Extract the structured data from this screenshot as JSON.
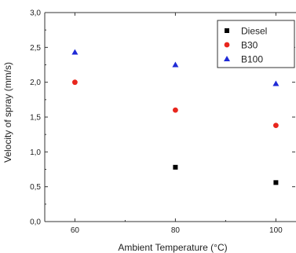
{
  "chart_data": {
    "type": "scatter",
    "xlabel": "Ambient Temperature (°C)",
    "ylabel": "Velocity of spray (mm/s)",
    "xlim": [
      54,
      104
    ],
    "ylim": [
      0,
      3.0
    ],
    "xticks": [
      60,
      80,
      100
    ],
    "yticks": [
      0,
      0.5,
      1.0,
      1.5,
      2.0,
      2.5,
      3.0
    ],
    "xtick_labels": [
      "60",
      "80",
      "100"
    ],
    "ytick_labels": [
      "0,0",
      "0,5",
      "1,0",
      "1,5",
      "2,0",
      "2,5",
      "3,0"
    ],
    "grid": false,
    "legend_position": "top-right",
    "series": [
      {
        "name": "Diesel",
        "color": "#000000",
        "marker": "square",
        "x": [
          80,
          100
        ],
        "y": [
          0.78,
          0.56
        ]
      },
      {
        "name": "B30",
        "color": "#e8261d",
        "marker": "circle",
        "x": [
          60,
          80,
          100
        ],
        "y": [
          2.0,
          1.6,
          1.38
        ]
      },
      {
        "name": "B100",
        "color": "#1f2ad6",
        "marker": "triangle",
        "x": [
          60,
          80,
          100
        ],
        "y": [
          2.43,
          2.25,
          1.98
        ]
      }
    ]
  }
}
